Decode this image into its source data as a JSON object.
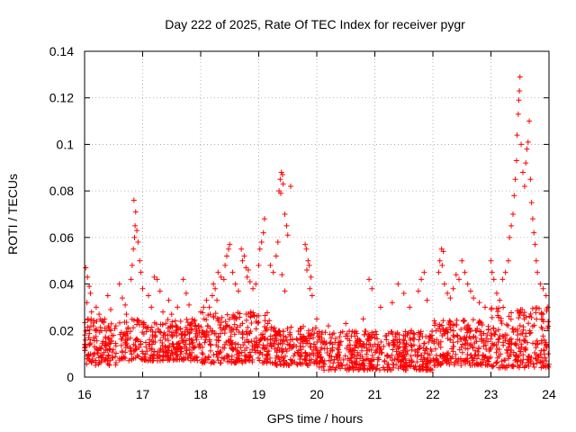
{
  "chart_data": {
    "type": "scatter",
    "title": "Day 222 of 2025, Rate Of TEC Index for receiver pygr",
    "xlabel": "GPS time / hours",
    "ylabel": "ROTI / TECUs",
    "xlim": [
      16,
      24
    ],
    "ylim": [
      0,
      0.14
    ],
    "x_ticks": [
      16,
      17,
      18,
      19,
      20,
      21,
      22,
      23,
      24
    ],
    "x_tick_labels": [
      "16",
      "17",
      "18",
      "19",
      "20",
      "21",
      "22",
      "23",
      "24"
    ],
    "y_ticks": [
      0,
      0.02,
      0.04,
      0.06,
      0.08,
      0.1,
      0.12,
      0.14
    ],
    "y_tick_labels": [
      "0",
      "0.02",
      "0.04",
      "0.06",
      "0.08",
      "0.1",
      "0.12",
      "0.14"
    ],
    "grid": true,
    "marker": "+",
    "color": "#ff0000",
    "series": [
      {
        "name": "ROTI",
        "points": [
          [
            16.02,
            0.047
          ],
          [
            16.05,
            0.043
          ],
          [
            16.08,
            0.039
          ],
          [
            16.1,
            0.036
          ],
          [
            16.04,
            0.032
          ],
          [
            16.12,
            0.028
          ],
          [
            16.06,
            0.025
          ],
          [
            16.15,
            0.022
          ],
          [
            16.2,
            0.03
          ],
          [
            16.25,
            0.027
          ],
          [
            16.3,
            0.024
          ],
          [
            16.35,
            0.021
          ],
          [
            16.4,
            0.035
          ],
          [
            16.45,
            0.029
          ],
          [
            16.6,
            0.04
          ],
          [
            16.65,
            0.034
          ],
          [
            16.7,
            0.031
          ],
          [
            16.72,
            0.027
          ],
          [
            16.8,
            0.042
          ],
          [
            16.82,
            0.048
          ],
          [
            16.84,
            0.055
          ],
          [
            16.86,
            0.06
          ],
          [
            16.87,
            0.065
          ],
          [
            16.88,
            0.071
          ],
          [
            16.85,
            0.076
          ],
          [
            16.9,
            0.063
          ],
          [
            16.92,
            0.058
          ],
          [
            16.95,
            0.05
          ],
          [
            16.97,
            0.045
          ],
          [
            17.0,
            0.038
          ],
          [
            17.1,
            0.035
          ],
          [
            17.15,
            0.03
          ],
          [
            17.2,
            0.043
          ],
          [
            17.25,
            0.042
          ],
          [
            17.3,
            0.037
          ],
          [
            17.35,
            0.028
          ],
          [
            17.45,
            0.033
          ],
          [
            17.5,
            0.027
          ],
          [
            17.6,
            0.03
          ],
          [
            17.7,
            0.042
          ],
          [
            17.75,
            0.036
          ],
          [
            17.8,
            0.031
          ],
          [
            18.0,
            0.028
          ],
          [
            18.05,
            0.03
          ],
          [
            18.1,
            0.033
          ],
          [
            18.15,
            0.03
          ],
          [
            18.2,
            0.035
          ],
          [
            18.22,
            0.04
          ],
          [
            18.25,
            0.038
          ],
          [
            18.28,
            0.033
          ],
          [
            18.3,
            0.045
          ],
          [
            18.35,
            0.043
          ],
          [
            18.4,
            0.042
          ],
          [
            18.42,
            0.048
          ],
          [
            18.45,
            0.052
          ],
          [
            18.48,
            0.055
          ],
          [
            18.5,
            0.057
          ],
          [
            18.55,
            0.045
          ],
          [
            18.6,
            0.04
          ],
          [
            18.65,
            0.037
          ],
          [
            18.7,
            0.055
          ],
          [
            18.72,
            0.05
          ],
          [
            18.75,
            0.052
          ],
          [
            18.78,
            0.047
          ],
          [
            18.8,
            0.043
          ],
          [
            18.82,
            0.046
          ],
          [
            18.85,
            0.041
          ],
          [
            18.9,
            0.038
          ],
          [
            18.95,
            0.04
          ],
          [
            19.0,
            0.048
          ],
          [
            19.02,
            0.055
          ],
          [
            19.05,
            0.058
          ],
          [
            19.08,
            0.062
          ],
          [
            19.1,
            0.068
          ],
          [
            19.2,
            0.048
          ],
          [
            19.25,
            0.045
          ],
          [
            19.3,
            0.052
          ],
          [
            19.33,
            0.058
          ],
          [
            19.35,
            0.08
          ],
          [
            19.37,
            0.085
          ],
          [
            19.39,
            0.088
          ],
          [
            19.41,
            0.087
          ],
          [
            19.42,
            0.083
          ],
          [
            19.38,
            0.079
          ],
          [
            19.45,
            0.07
          ],
          [
            19.48,
            0.065
          ],
          [
            19.5,
            0.061
          ],
          [
            19.55,
            0.082
          ],
          [
            19.4,
            0.044
          ],
          [
            19.45,
            0.037
          ],
          [
            19.8,
            0.057
          ],
          [
            19.82,
            0.055
          ],
          [
            19.85,
            0.05
          ],
          [
            19.87,
            0.048
          ],
          [
            19.83,
            0.046
          ],
          [
            19.9,
            0.043
          ],
          [
            19.88,
            0.038
          ],
          [
            19.92,
            0.035
          ],
          [
            20.0,
            0.025
          ],
          [
            20.2,
            0.022
          ],
          [
            20.5,
            0.023
          ],
          [
            20.8,
            0.025
          ],
          [
            20.9,
            0.042
          ],
          [
            20.95,
            0.038
          ],
          [
            21.1,
            0.03
          ],
          [
            21.3,
            0.032
          ],
          [
            21.4,
            0.04
          ],
          [
            21.5,
            0.036
          ],
          [
            21.6,
            0.03
          ],
          [
            21.75,
            0.037
          ],
          [
            21.8,
            0.042
          ],
          [
            21.85,
            0.045
          ],
          [
            21.9,
            0.033
          ],
          [
            22.1,
            0.045
          ],
          [
            22.12,
            0.05
          ],
          [
            22.15,
            0.055
          ],
          [
            22.18,
            0.054
          ],
          [
            22.16,
            0.048
          ],
          [
            22.2,
            0.04
          ],
          [
            22.25,
            0.036
          ],
          [
            22.3,
            0.034
          ],
          [
            22.35,
            0.038
          ],
          [
            22.4,
            0.044
          ],
          [
            22.45,
            0.042
          ],
          [
            22.5,
            0.05
          ],
          [
            22.55,
            0.045
          ],
          [
            22.6,
            0.04
          ],
          [
            22.65,
            0.037
          ],
          [
            22.7,
            0.034
          ],
          [
            22.8,
            0.032
          ],
          [
            22.9,
            0.03
          ],
          [
            23.0,
            0.05
          ],
          [
            23.02,
            0.045
          ],
          [
            23.05,
            0.042
          ],
          [
            23.1,
            0.036
          ],
          [
            23.15,
            0.033
          ],
          [
            23.2,
            0.042
          ],
          [
            23.25,
            0.045
          ],
          [
            23.3,
            0.05
          ],
          [
            23.32,
            0.06
          ],
          [
            23.35,
            0.065
          ],
          [
            23.38,
            0.07
          ],
          [
            23.4,
            0.078
          ],
          [
            23.42,
            0.085
          ],
          [
            23.44,
            0.093
          ],
          [
            23.45,
            0.104
          ],
          [
            23.47,
            0.113
          ],
          [
            23.48,
            0.119
          ],
          [
            23.49,
            0.123
          ],
          [
            23.5,
            0.129
          ],
          [
            23.52,
            0.1
          ],
          [
            23.55,
            0.088
          ],
          [
            23.58,
            0.082
          ],
          [
            23.6,
            0.092
          ],
          [
            23.62,
            0.098
          ],
          [
            23.64,
            0.101
          ],
          [
            23.66,
            0.11
          ],
          [
            23.68,
            0.085
          ],
          [
            23.7,
            0.075
          ],
          [
            23.72,
            0.068
          ],
          [
            23.74,
            0.062
          ],
          [
            23.76,
            0.057
          ],
          [
            23.78,
            0.05
          ],
          [
            23.8,
            0.045
          ],
          [
            23.85,
            0.04
          ],
          [
            23.9,
            0.038
          ],
          [
            23.95,
            0.035
          ],
          [
            23.98,
            0.03
          ]
        ]
      }
    ],
    "background_band": {
      "description": "dense cloud of low ROTI values",
      "segments": [
        {
          "x_range": [
            16.0,
            16.55
          ],
          "y_range": [
            0.005,
            0.025
          ]
        },
        {
          "x_range": [
            16.6,
            18.0
          ],
          "y_range": [
            0.007,
            0.025
          ]
        },
        {
          "x_range": [
            18.0,
            19.2
          ],
          "y_range": [
            0.006,
            0.028
          ]
        },
        {
          "x_range": [
            19.2,
            20.0
          ],
          "y_range": [
            0.005,
            0.022
          ]
        },
        {
          "x_range": [
            20.0,
            22.0
          ],
          "y_range": [
            0.003,
            0.02
          ]
        },
        {
          "x_range": [
            22.0,
            23.0
          ],
          "y_range": [
            0.005,
            0.025
          ]
        },
        {
          "x_range": [
            23.0,
            24.0
          ],
          "y_range": [
            0.004,
            0.03
          ]
        }
      ],
      "count": 1900
    }
  }
}
